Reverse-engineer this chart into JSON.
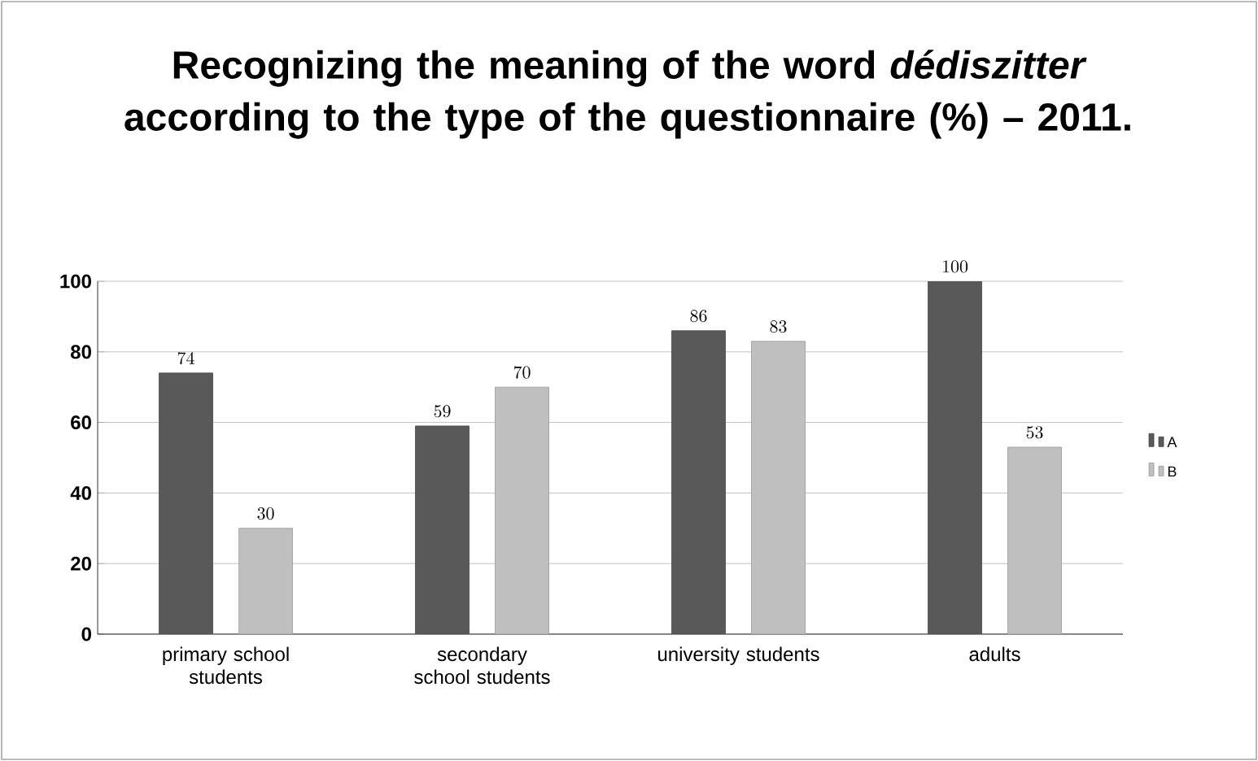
{
  "chart_data": {
    "type": "bar",
    "title": "Recognizing the meaning of the word *dédiszitter* according to the type of the questionnaire (%)  – 2011.",
    "categories": [
      "primary school students",
      "secondary school students",
      "university students",
      "adults"
    ],
    "series": [
      {
        "name": "A",
        "color": "#595959",
        "values": [
          74,
          59,
          86,
          100
        ]
      },
      {
        "name": "B",
        "color": "#bfbfbf",
        "values": [
          30,
          70,
          83,
          53
        ]
      }
    ],
    "ylim": [
      0,
      100
    ],
    "yticks": [
      0,
      20,
      40,
      60,
      80,
      100
    ],
    "grid": "y",
    "legend": "right",
    "data_labels": true
  }
}
